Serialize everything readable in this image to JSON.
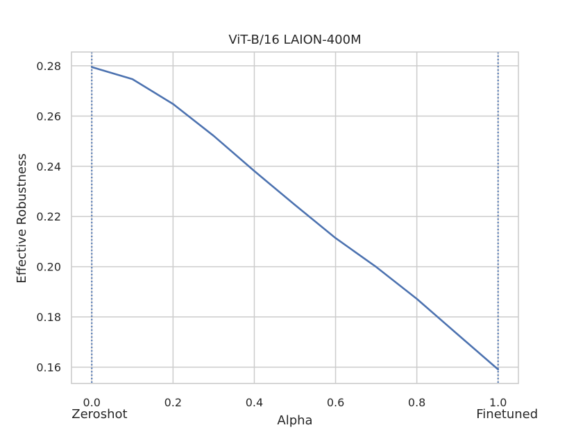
{
  "chart_data": {
    "type": "line",
    "title": "ViT-B/16 LAION-400M",
    "xlabel": "Alpha",
    "ylabel": "Effective Robustness",
    "xlim": [
      -0.05,
      1.05
    ],
    "ylim": [
      0.1535,
      0.2855
    ],
    "x_ticks": [
      0.0,
      0.2,
      0.4,
      0.6,
      0.8,
      1.0
    ],
    "x_tick_labels": [
      "0.0",
      "0.2",
      "0.4",
      "0.6",
      "0.8",
      "1.0"
    ],
    "y_ticks": [
      0.16,
      0.18,
      0.2,
      0.22,
      0.24,
      0.26,
      0.28
    ],
    "y_tick_labels": [
      "0.16",
      "0.18",
      "0.20",
      "0.22",
      "0.24",
      "0.26",
      "0.28"
    ],
    "grid": true,
    "series": [
      {
        "x": [
          0.0,
          0.1,
          0.2,
          0.3,
          0.4,
          0.5,
          0.6,
          0.7,
          0.8,
          0.9,
          1.0
        ],
        "values": [
          0.2795,
          0.2747,
          0.2648,
          0.2521,
          0.2381,
          0.2246,
          0.2114,
          0.1999,
          0.1872,
          0.1731,
          0.1591
        ]
      }
    ],
    "vlines": [
      {
        "x": 0.0,
        "style": "dotted",
        "label": "Zeroshot"
      },
      {
        "x": 1.0,
        "style": "dotted",
        "label": "Finetuned"
      }
    ],
    "colors": {
      "line": "#4c72b0",
      "grid": "#cccccc",
      "spine": "#cccccc",
      "text": "#262626"
    }
  }
}
